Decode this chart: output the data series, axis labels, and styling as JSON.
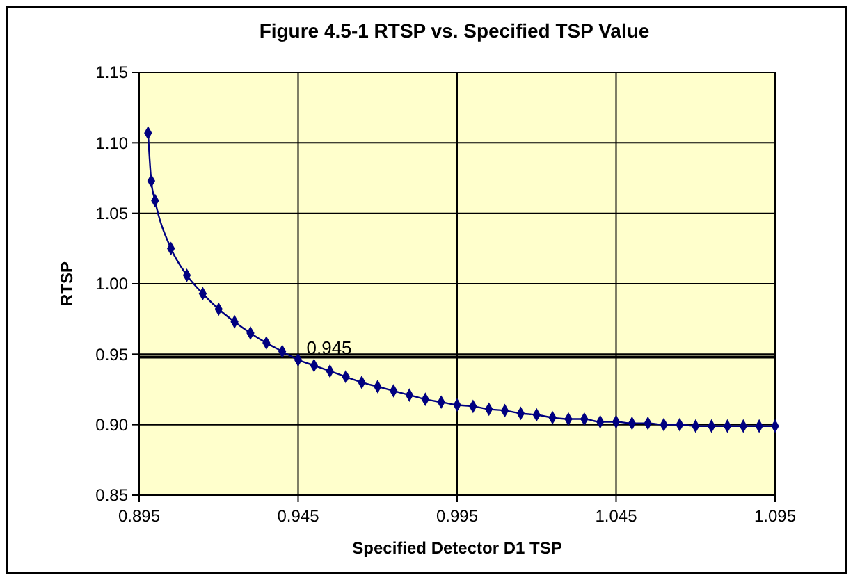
{
  "chart_data": {
    "type": "line",
    "title": "Figure 4.5-1  RTSP vs. Specified TSP Value",
    "xlabel": "Specified Detector D1 TSP",
    "ylabel": "RTSP",
    "x": [
      0.8978,
      0.8988,
      0.9,
      0.905,
      0.91,
      0.915,
      0.92,
      0.925,
      0.93,
      0.935,
      0.94,
      0.945,
      0.95,
      0.955,
      0.96,
      0.965,
      0.97,
      0.975,
      0.98,
      0.985,
      0.99,
      0.995,
      1.0,
      1.005,
      1.01,
      1.015,
      1.02,
      1.025,
      1.03,
      1.035,
      1.04,
      1.045,
      1.05,
      1.055,
      1.06,
      1.065,
      1.07,
      1.075,
      1.08,
      1.085,
      1.09,
      1.095
    ],
    "series": [
      {
        "color": "#000080",
        "values": [
          1.107,
          1.073,
          1.059,
          1.025,
          1.006,
          0.993,
          0.982,
          0.973,
          0.965,
          0.958,
          0.952,
          0.946,
          0.942,
          0.938,
          0.934,
          0.93,
          0.927,
          0.924,
          0.921,
          0.918,
          0.916,
          0.914,
          0.913,
          0.911,
          0.91,
          0.908,
          0.907,
          0.905,
          0.904,
          0.904,
          0.902,
          0.902,
          0.901,
          0.901,
          0.9,
          0.9,
          0.899,
          0.899,
          0.899,
          0.899,
          0.899,
          0.899
        ]
      }
    ],
    "xlim": [
      0.895,
      1.095
    ],
    "xticks": [
      0.895,
      0.945,
      0.995,
      1.045,
      1.095
    ],
    "ylim": [
      0.85,
      1.15
    ],
    "yticks": [
      0.85,
      {
        "value": 0.9,
        "label": "0.90"
      },
      0.95,
      {
        "value": 1.0,
        "label": "1.00"
      },
      1.05,
      {
        "value": 1.1,
        "label": "1.10"
      },
      1.15
    ],
    "ref_lines": [
      {
        "axis": "y",
        "value": 0.948,
        "color": "#000000"
      }
    ],
    "annotations": [
      {
        "text": "0.945",
        "x": 0.945,
        "y": 0.946
      }
    ],
    "grid": true,
    "marker": "diamond",
    "line_style": "solid"
  }
}
